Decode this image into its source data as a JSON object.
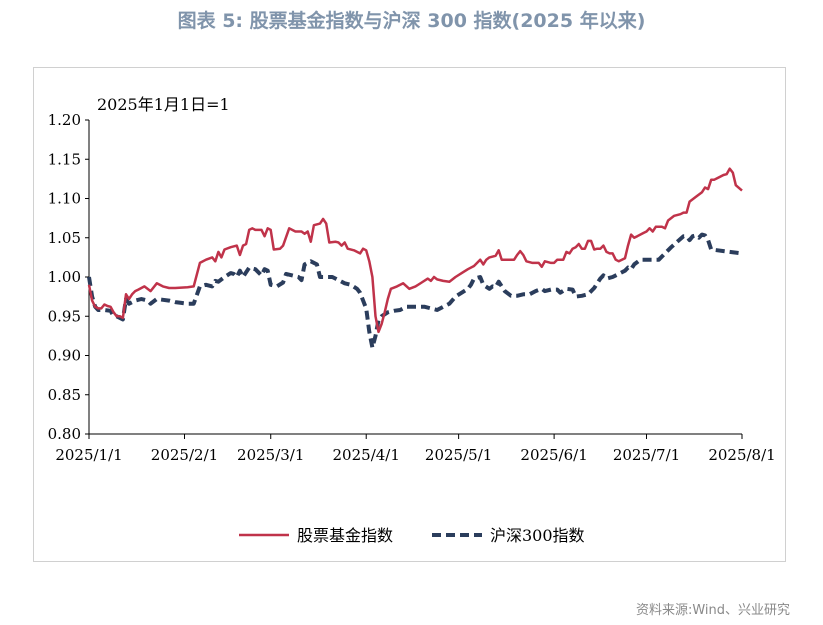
{
  "header": {
    "title": "图表 5:  股票基金指数与沪深 300 指数(2025 年以来)"
  },
  "footer": {
    "source": "资料来源:Wind、兴业研究"
  },
  "chart_data": {
    "type": "line",
    "annotation": "2025年1月1日=1",
    "xlabel": "",
    "ylabel": "",
    "x_tick_labels": [
      "2025/1/1",
      "2025/2/1",
      "2025/3/1",
      "2025/4/1",
      "2025/5/1",
      "2025/6/1",
      "2025/7/1",
      "2025/8/1"
    ],
    "x_tick_days": [
      0,
      31,
      59,
      90,
      120,
      151,
      181,
      212
    ],
    "y_tick_labels": [
      "0.80",
      "0.85",
      "0.90",
      "0.95",
      "1.00",
      "1.05",
      "1.10",
      "1.15",
      "1.20"
    ],
    "ylim": [
      0.8,
      1.2
    ],
    "grid": false,
    "legend_position": "bottom",
    "series": [
      {
        "name": "股票基金指数",
        "color": "#c0334a",
        "style": "solid",
        "points": [
          [
            0,
            0.99
          ],
          [
            1,
            0.97
          ],
          [
            2,
            0.962
          ],
          [
            3,
            0.96
          ],
          [
            4,
            0.96
          ],
          [
            5,
            0.965
          ],
          [
            6,
            0.963
          ],
          [
            7,
            0.962
          ],
          [
            8,
            0.955
          ],
          [
            9,
            0.95
          ],
          [
            10,
            0.95
          ],
          [
            11,
            0.948
          ],
          [
            12,
            0.978
          ],
          [
            13,
            0.972
          ],
          [
            14,
            0.978
          ],
          [
            15,
            0.982
          ],
          [
            16,
            0.984
          ],
          [
            18,
            0.988
          ],
          [
            20,
            0.982
          ],
          [
            22,
            0.992
          ],
          [
            24,
            0.988
          ],
          [
            26,
            0.986
          ],
          [
            28,
            0.986
          ],
          [
            32,
            0.987
          ],
          [
            34,
            0.988
          ],
          [
            36,
            1.018
          ],
          [
            38,
            1.022
          ],
          [
            40,
            1.025
          ],
          [
            41,
            1.02
          ],
          [
            42,
            1.032
          ],
          [
            43,
            1.025
          ],
          [
            44,
            1.035
          ],
          [
            46,
            1.038
          ],
          [
            48,
            1.04
          ],
          [
            49,
            1.028
          ],
          [
            50,
            1.04
          ],
          [
            51,
            1.042
          ],
          [
            52,
            1.06
          ],
          [
            53,
            1.062
          ],
          [
            54,
            1.06
          ],
          [
            56,
            1.06
          ],
          [
            57,
            1.052
          ],
          [
            58,
            1.062
          ],
          [
            59,
            1.06
          ],
          [
            60,
            1.035
          ],
          [
            62,
            1.036
          ],
          [
            63,
            1.04
          ],
          [
            65,
            1.062
          ],
          [
            67,
            1.058
          ],
          [
            69,
            1.058
          ],
          [
            70,
            1.055
          ],
          [
            71,
            1.058
          ],
          [
            72,
            1.045
          ],
          [
            73,
            1.066
          ],
          [
            75,
            1.068
          ],
          [
            76,
            1.074
          ],
          [
            77,
            1.068
          ],
          [
            78,
            1.044
          ],
          [
            80,
            1.045
          ],
          [
            81,
            1.044
          ],
          [
            82,
            1.04
          ],
          [
            83,
            1.044
          ],
          [
            84,
            1.036
          ],
          [
            86,
            1.034
          ],
          [
            88,
            1.03
          ],
          [
            89,
            1.036
          ],
          [
            90,
            1.034
          ],
          [
            91,
            1.02
          ],
          [
            92,
            1.0
          ],
          [
            93,
            0.95
          ],
          [
            94,
            0.93
          ],
          [
            95,
            0.94
          ],
          [
            96,
            0.955
          ],
          [
            97,
            0.972
          ],
          [
            98,
            0.985
          ],
          [
            100,
            0.988
          ],
          [
            102,
            0.992
          ],
          [
            104,
            0.985
          ],
          [
            106,
            0.988
          ],
          [
            108,
            0.993
          ],
          [
            110,
            0.998
          ],
          [
            111,
            0.995
          ],
          [
            112,
            1.0
          ],
          [
            113,
            0.997
          ],
          [
            115,
            0.995
          ],
          [
            117,
            0.994
          ],
          [
            119,
            1.0
          ],
          [
            121,
            1.005
          ],
          [
            123,
            1.01
          ],
          [
            125,
            1.014
          ],
          [
            126,
            1.018
          ],
          [
            127,
            1.022
          ],
          [
            128,
            1.016
          ],
          [
            129,
            1.022
          ],
          [
            130,
            1.025
          ],
          [
            132,
            1.027
          ],
          [
            133,
            1.034
          ],
          [
            134,
            1.022
          ],
          [
            136,
            1.022
          ],
          [
            138,
            1.022
          ],
          [
            139,
            1.028
          ],
          [
            140,
            1.033
          ],
          [
            141,
            1.028
          ],
          [
            142,
            1.02
          ],
          [
            144,
            1.018
          ],
          [
            146,
            1.018
          ],
          [
            147,
            1.013
          ],
          [
            148,
            1.02
          ],
          [
            150,
            1.018
          ],
          [
            151,
            1.018
          ],
          [
            152,
            1.022
          ],
          [
            154,
            1.022
          ],
          [
            155,
            1.032
          ],
          [
            156,
            1.03
          ],
          [
            157,
            1.036
          ],
          [
            158,
            1.038
          ],
          [
            159,
            1.042
          ],
          [
            160,
            1.036
          ],
          [
            161,
            1.036
          ],
          [
            162,
            1.046
          ],
          [
            163,
            1.046
          ],
          [
            164,
            1.035
          ],
          [
            165,
            1.036
          ],
          [
            166,
            1.036
          ],
          [
            167,
            1.04
          ],
          [
            168,
            1.032
          ],
          [
            169,
            1.03
          ],
          [
            170,
            1.03
          ],
          [
            171,
            1.022
          ],
          [
            172,
            1.02
          ],
          [
            174,
            1.024
          ],
          [
            175,
            1.04
          ],
          [
            176,
            1.054
          ],
          [
            177,
            1.05
          ],
          [
            178,
            1.052
          ],
          [
            180,
            1.056
          ],
          [
            181,
            1.058
          ],
          [
            182,
            1.062
          ],
          [
            183,
            1.058
          ],
          [
            184,
            1.064
          ],
          [
            186,
            1.064
          ],
          [
            187,
            1.062
          ],
          [
            188,
            1.072
          ],
          [
            190,
            1.078
          ],
          [
            192,
            1.08
          ],
          [
            193,
            1.082
          ],
          [
            194,
            1.082
          ],
          [
            195,
            1.096
          ],
          [
            197,
            1.102
          ],
          [
            199,
            1.108
          ],
          [
            200,
            1.114
          ],
          [
            201,
            1.112
          ],
          [
            202,
            1.124
          ],
          [
            203,
            1.124
          ],
          [
            204,
            1.126
          ],
          [
            206,
            1.13
          ],
          [
            207,
            1.131
          ],
          [
            208,
            1.138
          ],
          [
            209,
            1.133
          ],
          [
            210,
            1.117
          ],
          [
            212,
            1.11
          ]
        ]
      },
      {
        "name": "沪深300指数",
        "color": "#2b3d5c",
        "style": "dashed",
        "points": [
          [
            0,
            1.0
          ],
          [
            1,
            0.975
          ],
          [
            2,
            0.962
          ],
          [
            3,
            0.958
          ],
          [
            5,
            0.958
          ],
          [
            7,
            0.957
          ],
          [
            8,
            0.95
          ],
          [
            9,
            0.95
          ],
          [
            11,
            0.946
          ],
          [
            12,
            0.972
          ],
          [
            13,
            0.966
          ],
          [
            15,
            0.97
          ],
          [
            17,
            0.972
          ],
          [
            19,
            0.97
          ],
          [
            20,
            0.966
          ],
          [
            22,
            0.972
          ],
          [
            24,
            0.971
          ],
          [
            26,
            0.97
          ],
          [
            28,
            0.968
          ],
          [
            30,
            0.967
          ],
          [
            32,
            0.966
          ],
          [
            34,
            0.966
          ],
          [
            36,
            0.988
          ],
          [
            38,
            0.99
          ],
          [
            40,
            0.988
          ],
          [
            41,
            0.995
          ],
          [
            42,
            0.994
          ],
          [
            44,
            1.0
          ],
          [
            46,
            1.005
          ],
          [
            47,
            1.004
          ],
          [
            48,
            1.0
          ],
          [
            49,
            1.008
          ],
          [
            50,
            1.0
          ],
          [
            52,
            1.012
          ],
          [
            54,
            1.01
          ],
          [
            56,
            1.002
          ],
          [
            57,
            1.01
          ],
          [
            58,
            1.008
          ],
          [
            59,
            0.99
          ],
          [
            61,
            0.988
          ],
          [
            63,
            0.993
          ],
          [
            64,
            1.004
          ],
          [
            66,
            1.002
          ],
          [
            68,
            1.0
          ],
          [
            69,
            0.996
          ],
          [
            70,
            1.016
          ],
          [
            72,
            1.02
          ],
          [
            74,
            1.016
          ],
          [
            75,
            1.0
          ],
          [
            77,
            1.0
          ],
          [
            79,
            1.0
          ],
          [
            81,
            0.996
          ],
          [
            83,
            0.992
          ],
          [
            85,
            0.99
          ],
          [
            87,
            0.985
          ],
          [
            88,
            0.98
          ],
          [
            89,
            0.97
          ],
          [
            90,
            0.96
          ],
          [
            91,
            0.93
          ],
          [
            92,
            0.91
          ],
          [
            93,
            0.925
          ],
          [
            94,
            0.945
          ],
          [
            95,
            0.95
          ],
          [
            97,
            0.955
          ],
          [
            99,
            0.957
          ],
          [
            101,
            0.958
          ],
          [
            103,
            0.962
          ],
          [
            105,
            0.962
          ],
          [
            107,
            0.962
          ],
          [
            109,
            0.962
          ],
          [
            111,
            0.96
          ],
          [
            113,
            0.958
          ],
          [
            115,
            0.962
          ],
          [
            117,
            0.966
          ],
          [
            119,
            0.975
          ],
          [
            121,
            0.98
          ],
          [
            123,
            0.985
          ],
          [
            124,
            0.99
          ],
          [
            125,
            0.998
          ],
          [
            127,
            1.0
          ],
          [
            128,
            0.99
          ],
          [
            130,
            0.985
          ],
          [
            131,
            0.988
          ],
          [
            132,
            0.987
          ],
          [
            133,
            0.994
          ],
          [
            135,
            0.982
          ],
          [
            137,
            0.976
          ],
          [
            139,
            0.976
          ],
          [
            141,
            0.978
          ],
          [
            143,
            0.978
          ],
          [
            145,
            0.982
          ],
          [
            147,
            0.985
          ],
          [
            148,
            0.982
          ],
          [
            150,
            0.984
          ],
          [
            152,
            0.984
          ],
          [
            153,
            0.98
          ],
          [
            155,
            0.985
          ],
          [
            157,
            0.984
          ],
          [
            158,
            0.975
          ],
          [
            160,
            0.976
          ],
          [
            162,
            0.978
          ],
          [
            164,
            0.986
          ],
          [
            166,
            0.998
          ],
          [
            167,
            1.002
          ],
          [
            168,
            0.998
          ],
          [
            170,
            1.0
          ],
          [
            172,
            1.004
          ],
          [
            174,
            1.008
          ],
          [
            175,
            1.012
          ],
          [
            176,
            1.01
          ],
          [
            177,
            1.016
          ],
          [
            179,
            1.022
          ],
          [
            181,
            1.022
          ],
          [
            183,
            1.022
          ],
          [
            185,
            1.022
          ],
          [
            187,
            1.03
          ],
          [
            189,
            1.038
          ],
          [
            191,
            1.045
          ],
          [
            193,
            1.052
          ],
          [
            194,
            1.052
          ],
          [
            195,
            1.047
          ],
          [
            196,
            1.052
          ],
          [
            197,
            1.053
          ],
          [
            198,
            1.05
          ],
          [
            199,
            1.054
          ],
          [
            200,
            1.053
          ],
          [
            201,
            1.047
          ],
          [
            202,
            1.035
          ],
          [
            212,
            1.03
          ]
        ]
      }
    ]
  }
}
